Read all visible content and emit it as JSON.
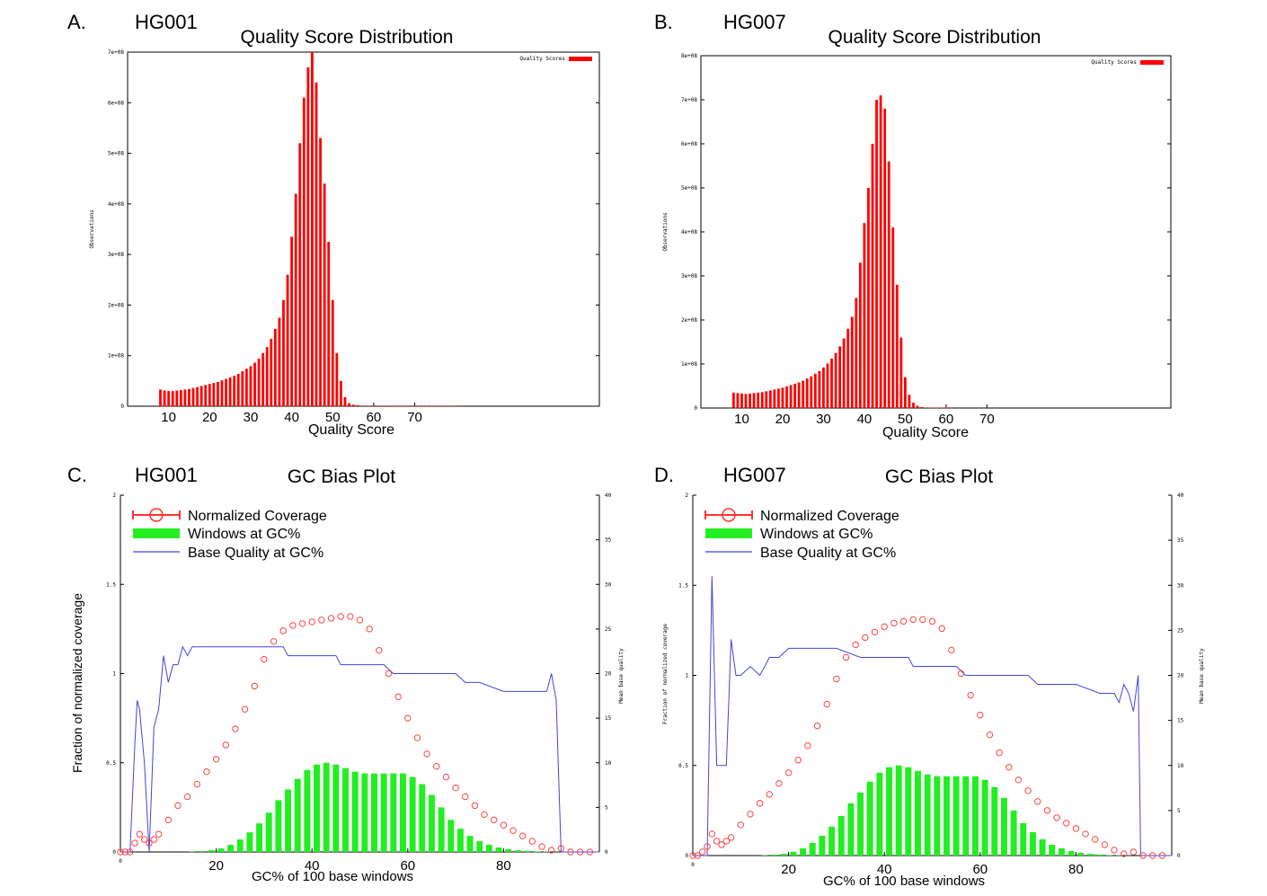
{
  "chart_data": [
    {
      "panel": "A.",
      "sample": "HG001",
      "type": "bar",
      "title": "Quality Score Distribution",
      "xlabel": "Quality Score",
      "ylabel": "Observations",
      "legend": "Quality Scores",
      "legend_position": "top-right",
      "xlim": [
        0,
        115
      ],
      "ylim": [
        0,
        700000000
      ],
      "x_ticks": [
        "10",
        "20",
        "30",
        "40",
        "50",
        "60",
        "70"
      ],
      "y_ticks": [
        "0",
        "1e+08",
        "2e+08",
        "3e+08",
        "4e+08",
        "5e+08",
        "6e+08",
        "7e+08"
      ],
      "bar_color": "#ff0000",
      "x": [
        8,
        9,
        10,
        11,
        12,
        13,
        14,
        15,
        16,
        17,
        18,
        19,
        20,
        21,
        22,
        23,
        24,
        25,
        26,
        27,
        28,
        29,
        30,
        31,
        32,
        33,
        34,
        35,
        36,
        37,
        38,
        39,
        40,
        41,
        42,
        43,
        44,
        45,
        46,
        47,
        48,
        49,
        50,
        51,
        52,
        53,
        54,
        55,
        56,
        57,
        58,
        59,
        60,
        61,
        62,
        63,
        64,
        65,
        66,
        67,
        68,
        69,
        70,
        71,
        72,
        73,
        74,
        75,
        76,
        77,
        78,
        79,
        80
      ],
      "values": [
        33,
        31,
        30,
        30,
        31,
        32,
        33,
        34,
        36,
        38,
        40,
        42,
        44,
        46,
        48,
        51,
        54,
        57,
        60,
        64,
        69,
        74,
        79,
        86,
        94,
        105,
        117,
        133,
        153,
        175,
        210,
        260,
        335,
        420,
        520,
        610,
        670,
        700,
        640,
        530,
        440,
        325,
        210,
        105,
        50,
        18,
        6,
        3,
        2,
        1,
        1,
        1,
        1,
        1,
        1,
        1,
        1,
        1,
        1,
        1,
        1,
        1,
        1,
        1,
        1,
        1,
        1,
        1,
        1,
        1,
        1,
        1,
        1
      ],
      "value_scale": "values ×1e6 observations"
    },
    {
      "panel": "B.",
      "sample": "HG007",
      "type": "bar",
      "title": "Quality Score Distribution",
      "xlabel": "Quality Score",
      "ylabel": "Observations",
      "legend": "Quality Scores",
      "legend_position": "top-right",
      "xlim": [
        0,
        115
      ],
      "ylim": [
        0,
        800000000
      ],
      "x_ticks": [
        "10",
        "20",
        "30",
        "40",
        "50",
        "60",
        "70"
      ],
      "y_ticks": [
        "0",
        "1e+08",
        "2e+08",
        "3e+08",
        "4e+08",
        "5e+08",
        "6e+08",
        "7e+08",
        "8e+08"
      ],
      "bar_color": "#ff0000",
      "x": [
        8,
        9,
        10,
        11,
        12,
        13,
        14,
        15,
        16,
        17,
        18,
        19,
        20,
        21,
        22,
        23,
        24,
        25,
        26,
        27,
        28,
        29,
        30,
        31,
        32,
        33,
        34,
        35,
        36,
        37,
        38,
        39,
        40,
        41,
        42,
        43,
        44,
        45,
        46,
        47,
        48,
        49,
        50,
        51,
        52,
        53,
        54,
        55,
        56,
        57,
        58,
        59,
        60
      ],
      "values": [
        35,
        34,
        33,
        32,
        33,
        34,
        35,
        36,
        38,
        40,
        42,
        44,
        46,
        49,
        52,
        55,
        58,
        62,
        67,
        72,
        78,
        84,
        92,
        101,
        112,
        125,
        140,
        158,
        180,
        207,
        250,
        330,
        420,
        500,
        600,
        700,
        710,
        680,
        560,
        410,
        280,
        160,
        70,
        30,
        12,
        5,
        2,
        1,
        1,
        1,
        1,
        1,
        1
      ],
      "value_scale": "values ×1e6 observations"
    },
    {
      "panel": "C.",
      "sample": "HG001",
      "type": "line",
      "title": "GC Bias Plot",
      "xlabel": "GC% of 100 base windows",
      "ylabel": "Fraction of normalized coverage",
      "y2label": "Mean base quality",
      "legend": [
        "Normalized Coverage",
        "Windows at GC%",
        "Base Quality at GC%"
      ],
      "legend_position": "top-left",
      "xlim": [
        0,
        100
      ],
      "ylim": [
        0,
        2
      ],
      "y2lim": [
        0,
        40
      ],
      "x_ticks": [
        "0",
        "20",
        "40",
        "60",
        "80"
      ],
      "y_ticks": [
        "0",
        "0.5",
        "1",
        "1.5",
        "2"
      ],
      "y2_ticks": [
        "0",
        "5",
        "10",
        "15",
        "20",
        "25",
        "30",
        "35",
        "40"
      ],
      "series": [
        {
          "name": "Normalized Coverage",
          "style": "open-circles",
          "color": "#ff4444",
          "x": [
            0,
            1,
            2,
            3,
            4,
            5,
            6,
            7,
            8,
            10,
            12,
            14,
            16,
            18,
            20,
            22,
            24,
            26,
            28,
            30,
            32,
            34,
            36,
            38,
            40,
            42,
            44,
            46,
            48,
            50,
            52,
            54,
            56,
            58,
            60,
            62,
            64,
            66,
            68,
            70,
            72,
            74,
            76,
            78,
            80,
            82,
            84,
            86,
            88,
            90,
            92,
            94,
            96,
            98
          ],
          "values": [
            0,
            0,
            0,
            0.05,
            0.1,
            0.07,
            0.05,
            0.07,
            0.1,
            0.18,
            0.26,
            0.31,
            0.38,
            0.45,
            0.52,
            0.6,
            0.69,
            0.8,
            0.93,
            1.08,
            1.18,
            1.24,
            1.27,
            1.28,
            1.29,
            1.3,
            1.31,
            1.32,
            1.32,
            1.3,
            1.25,
            1.13,
            1.0,
            0.87,
            0.75,
            0.64,
            0.55,
            0.48,
            0.42,
            0.36,
            0.31,
            0.26,
            0.21,
            0.18,
            0.15,
            0.12,
            0.09,
            0.06,
            0.03,
            0.01,
            0.02,
            0,
            0,
            0
          ]
        },
        {
          "name": "Windows at GC%",
          "style": "bars",
          "color": "#22ee22",
          "x": [
            15,
            17,
            19,
            21,
            23,
            25,
            27,
            29,
            31,
            33,
            35,
            37,
            39,
            41,
            43,
            45,
            47,
            49,
            51,
            53,
            55,
            57,
            59,
            61,
            63,
            65,
            67,
            69,
            71,
            73,
            75,
            77,
            79,
            81,
            83,
            85,
            87,
            89,
            91
          ],
          "values": [
            0.002,
            0.005,
            0.01,
            0.02,
            0.04,
            0.07,
            0.11,
            0.16,
            0.22,
            0.29,
            0.35,
            0.41,
            0.46,
            0.49,
            0.5,
            0.49,
            0.47,
            0.45,
            0.44,
            0.44,
            0.44,
            0.44,
            0.44,
            0.42,
            0.38,
            0.32,
            0.25,
            0.18,
            0.13,
            0.09,
            0.06,
            0.04,
            0.025,
            0.015,
            0.01,
            0.006,
            0.003,
            0.002,
            0.001
          ]
        },
        {
          "name": "Base Quality at GC%",
          "style": "line",
          "color": "#4444dd",
          "axis": "y2",
          "x": [
            0,
            1,
            2,
            3,
            3.5,
            4,
            5,
            6,
            7,
            8,
            9,
            10,
            11,
            12,
            13,
            14,
            15,
            20,
            25,
            30,
            34,
            35,
            40,
            45,
            46,
            50,
            55,
            57,
            60,
            65,
            70,
            72,
            75,
            80,
            85,
            89,
            90,
            91,
            92,
            93,
            94,
            95,
            100
          ],
          "values": [
            0,
            0,
            0,
            12,
            17,
            16,
            10,
            0,
            14,
            16,
            22,
            19,
            21,
            21,
            23,
            22,
            23,
            23,
            23,
            23,
            23,
            22,
            22,
            22,
            21,
            21,
            21,
            20,
            20,
            20,
            20,
            19,
            19,
            18,
            18,
            18,
            20,
            17,
            0,
            0,
            0,
            0,
            0
          ]
        }
      ]
    },
    {
      "panel": "D.",
      "sample": "HG007",
      "type": "line",
      "title": "GC Bias Plot",
      "xlabel": "GC% of 100 base windows",
      "ylabel": "Fraction of normalized coverage",
      "y2label": "Mean base quality",
      "legend": [
        "Normalized Coverage",
        "Windows at GC%",
        "Base Quality at GC%"
      ],
      "legend_position": "top-left",
      "xlim": [
        0,
        100
      ],
      "ylim": [
        0,
        2
      ],
      "y2lim": [
        0,
        40
      ],
      "x_ticks": [
        "0",
        "20",
        "40",
        "60",
        "80"
      ],
      "y_ticks": [
        "0",
        "0.5",
        "1",
        "1.5",
        "2"
      ],
      "y2_ticks": [
        "0",
        "5",
        "10",
        "15",
        "20",
        "25",
        "30",
        "35",
        "40"
      ],
      "series": [
        {
          "name": "Normalized Coverage",
          "style": "open-circles",
          "color": "#ff4444",
          "x": [
            0,
            1,
            2,
            3,
            4,
            5,
            6,
            7,
            8,
            10,
            12,
            14,
            16,
            18,
            20,
            22,
            24,
            26,
            28,
            30,
            32,
            34,
            36,
            38,
            40,
            42,
            44,
            46,
            48,
            50,
            52,
            54,
            56,
            58,
            60,
            62,
            64,
            66,
            68,
            70,
            72,
            74,
            76,
            78,
            80,
            82,
            84,
            86,
            88,
            90,
            92,
            94,
            96,
            98
          ],
          "values": [
            0,
            0,
            0.02,
            0.05,
            0.12,
            0.08,
            0.06,
            0.08,
            0.1,
            0.17,
            0.23,
            0.29,
            0.34,
            0.4,
            0.46,
            0.53,
            0.61,
            0.72,
            0.84,
            0.98,
            1.1,
            1.17,
            1.21,
            1.24,
            1.27,
            1.29,
            1.3,
            1.31,
            1.31,
            1.3,
            1.26,
            1.14,
            1.01,
            0.89,
            0.78,
            0.67,
            0.57,
            0.49,
            0.42,
            0.36,
            0.3,
            0.25,
            0.21,
            0.18,
            0.15,
            0.12,
            0.09,
            0.06,
            0.03,
            0.01,
            0.02,
            0,
            0,
            0
          ]
        },
        {
          "name": "Windows at GC%",
          "style": "bars",
          "color": "#22ee22",
          "x": [
            15,
            17,
            19,
            21,
            23,
            25,
            27,
            29,
            31,
            33,
            35,
            37,
            39,
            41,
            43,
            45,
            47,
            49,
            51,
            53,
            55,
            57,
            59,
            61,
            63,
            65,
            67,
            69,
            71,
            73,
            75,
            77,
            79,
            81,
            83,
            85,
            87,
            89,
            91
          ],
          "values": [
            0.002,
            0.005,
            0.01,
            0.02,
            0.04,
            0.07,
            0.11,
            0.16,
            0.22,
            0.29,
            0.35,
            0.41,
            0.46,
            0.49,
            0.5,
            0.49,
            0.47,
            0.45,
            0.44,
            0.44,
            0.44,
            0.44,
            0.44,
            0.42,
            0.38,
            0.32,
            0.25,
            0.18,
            0.13,
            0.09,
            0.06,
            0.04,
            0.025,
            0.015,
            0.01,
            0.006,
            0.003,
            0.002,
            0.001
          ]
        },
        {
          "name": "Base Quality at GC%",
          "style": "line",
          "color": "#4444dd",
          "axis": "y2",
          "x": [
            0,
            1,
            2,
            3,
            4,
            5,
            6,
            7,
            8,
            9,
            10,
            12,
            14,
            16,
            18,
            20,
            25,
            30,
            35,
            40,
            45,
            46,
            50,
            55,
            57,
            60,
            65,
            70,
            72,
            75,
            80,
            85,
            88,
            89,
            90,
            91,
            92,
            93,
            93.5,
            94,
            95,
            96,
            97,
            100
          ],
          "values": [
            0,
            0,
            0,
            0,
            31,
            10,
            10,
            10,
            24,
            20,
            20,
            21,
            20,
            22,
            22,
            23,
            23,
            23,
            22,
            22,
            22,
            21,
            21,
            21,
            20,
            20,
            20,
            20,
            19,
            19,
            19,
            18,
            18,
            17,
            19,
            18,
            16,
            20,
            0,
            0,
            0,
            0,
            0,
            0
          ]
        }
      ]
    }
  ]
}
